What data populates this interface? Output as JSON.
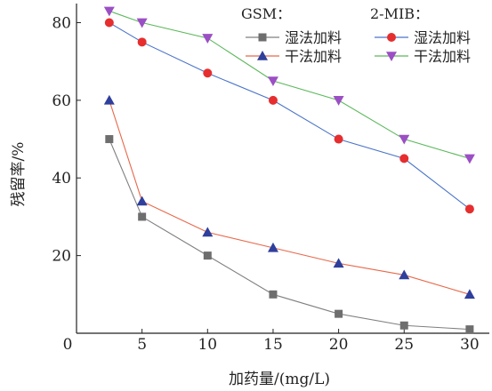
{
  "chart_data": {
    "type": "line",
    "xlabel": "加药量/(mg/L)",
    "ylabel": "残留率/%",
    "x_origin_label": "0",
    "xlim": [
      0,
      31.5
    ],
    "ylim": [
      0,
      84
    ],
    "xticks": [
      5,
      10,
      15,
      20,
      25,
      30
    ],
    "yticks": [
      20,
      40,
      60,
      80
    ],
    "grid": false,
    "legend_position": "top-right",
    "legend_groups": [
      {
        "title": "GSM：",
        "series_indices": [
          0,
          1
        ]
      },
      {
        "title": "2-MIB：",
        "series_indices": [
          2,
          3
        ]
      }
    ],
    "series": [
      {
        "name": "湿法加料",
        "group": "GSM",
        "color": "#7f7f7f",
        "marker": "square",
        "marker_color": "#6e6e6e",
        "x": [
          2.5,
          5,
          10,
          15,
          20,
          25,
          30
        ],
        "values": [
          50,
          30,
          20,
          10,
          5,
          2,
          1
        ]
      },
      {
        "name": "干法加料",
        "group": "GSM",
        "color": "#e8684a",
        "marker": "triangle-up",
        "marker_color": "#2f3f9c",
        "x": [
          2.5,
          5,
          10,
          15,
          20,
          25,
          30
        ],
        "values": [
          60,
          34,
          26,
          22,
          18,
          15,
          10
        ]
      },
      {
        "name": "湿法加料",
        "group": "2-MIB",
        "color": "#4a74c9",
        "marker": "circle",
        "marker_color": "#e62e2e",
        "x": [
          2.5,
          5,
          10,
          15,
          20,
          25,
          30
        ],
        "values": [
          80,
          75,
          67,
          60,
          50,
          45,
          32
        ]
      },
      {
        "name": "干法加料",
        "group": "2-MIB",
        "color": "#5cb85c",
        "marker": "triangle-down",
        "marker_color": "#9b4fc4",
        "x": [
          2.5,
          5,
          10,
          15,
          20,
          25,
          30
        ],
        "values": [
          83,
          80,
          76,
          65,
          60,
          50,
          45
        ]
      }
    ]
  }
}
